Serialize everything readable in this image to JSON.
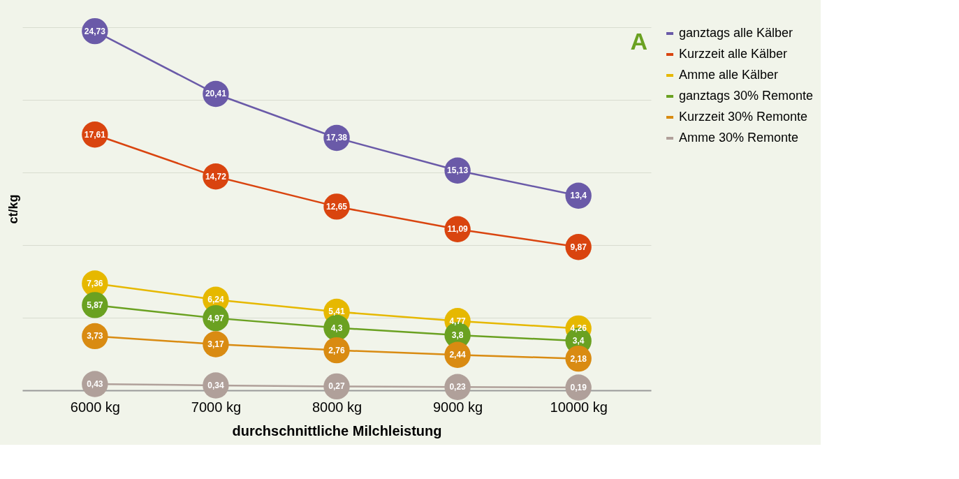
{
  "chart_data": {
    "type": "line",
    "xlabel": "durchschnittliche Milchleistung",
    "ylabel": "ct/kg",
    "categories": [
      "6000 kg",
      "7000 kg",
      "8000 kg",
      "9000 kg",
      "10000 kg"
    ],
    "series": [
      {
        "name": "ganztags alle Kälber",
        "color": "#6a5aa8",
        "values": [
          24.73,
          20.41,
          17.38,
          15.13,
          13.4
        ],
        "value_labels": [
          "24,73",
          "20,41",
          "17,38",
          "15,13",
          "13,4"
        ]
      },
      {
        "name": "Kurzzeit alle Kälber",
        "color": "#d9440f",
        "values": [
          17.61,
          14.72,
          12.65,
          11.09,
          9.87
        ],
        "value_labels": [
          "17,61",
          "14,72",
          "12,65",
          "11,09",
          "9,87"
        ]
      },
      {
        "name": "Amme alle Kälber",
        "color": "#e6b800",
        "values": [
          7.36,
          6.24,
          5.41,
          4.77,
          4.26
        ],
        "value_labels": [
          "7,36",
          "6,24",
          "5,41",
          "4,77",
          "4,26"
        ]
      },
      {
        "name": "ganztags 30% Remonte",
        "color": "#6aa121",
        "values": [
          5.87,
          4.97,
          4.3,
          3.8,
          3.4
        ],
        "value_labels": [
          "5,87",
          "4,97",
          "4,3",
          "3,8",
          "3,4"
        ]
      },
      {
        "name": "Kurzzeit 30% Remonte",
        "color": "#d98b12",
        "values": [
          3.73,
          3.17,
          2.76,
          2.44,
          2.18
        ],
        "value_labels": [
          "3,73",
          "3,17",
          "2,76",
          "2,44",
          "2,18"
        ]
      },
      {
        "name": "Amme 30% Remonte",
        "color": "#b0a09a",
        "values": [
          0.43,
          0.34,
          0.27,
          0.23,
          0.19
        ],
        "value_labels": [
          "0,43",
          "0,34",
          "0,27",
          "0,23",
          "0,19"
        ]
      }
    ],
    "ylim": [
      0,
      25
    ],
    "yticks": [
      {
        "value": 0,
        "label": null
      },
      {
        "value": 5,
        "label": null
      },
      {
        "value": 10,
        "label": null
      },
      {
        "value": 15,
        "label": null
      },
      {
        "value": 20,
        "label": null
      },
      {
        "value": 25,
        "label": null
      }
    ],
    "tick_labels": "x",
    "grid": "y",
    "marker": "circle",
    "line_style": "solid",
    "legend": "right",
    "annotations": [
      "A"
    ]
  }
}
